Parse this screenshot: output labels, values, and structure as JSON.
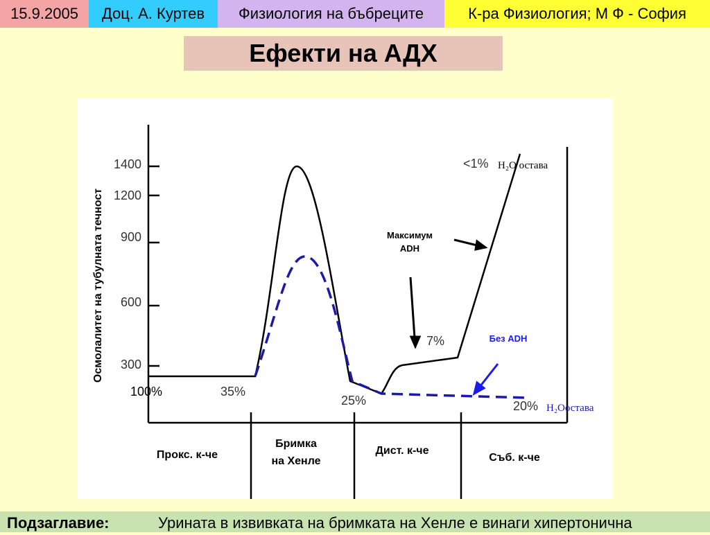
{
  "header": {
    "date": "15.9.2005",
    "author": "Доц. А. Куртев",
    "topic": "Физиология на бъбреците",
    "department": "К-ра Физиология; М Ф - София"
  },
  "title": "Ефекти на АДХ",
  "figure": {
    "y_axis_title": "Осмолалитет на тубулната течност",
    "y_tick_labels": [
      "1400",
      "1200",
      "900",
      "600",
      "300"
    ],
    "segments": [
      "Прокс. к-че",
      "Бримка",
      "на Хенле",
      "Дист. к-че",
      "Съб. к-че"
    ],
    "percent_labels": [
      "100%",
      "35%",
      "25%",
      "7%",
      "<1%",
      "20%"
    ],
    "annotations": {
      "max_adh_1": "Максимум",
      "max_adh_2": "ADH",
      "no_adh": "Без ADH",
      "water_remains_max": "H₂O остава",
      "water_remains_none": "H₂Oостава"
    }
  },
  "footer": {
    "label": "Подзаглавие:",
    "text": "Урината в извивката на бримката на Хенле е винаги хипертонична"
  }
}
